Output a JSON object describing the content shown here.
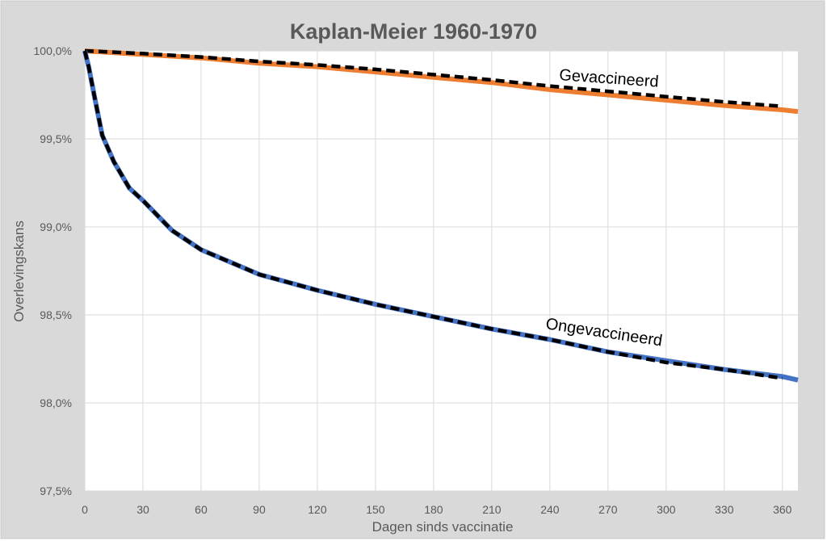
{
  "chart_data": {
    "type": "line",
    "title": "Kaplan-Meier 1960-1970",
    "xlabel": "Dagen sinds  vaccinatie",
    "ylabel": "Overlevingskans",
    "xlim": [
      0,
      368
    ],
    "ylim": [
      97.5,
      100.0
    ],
    "x_ticks": [
      0,
      30,
      60,
      90,
      120,
      150,
      180,
      210,
      240,
      270,
      300,
      330,
      360
    ],
    "y_ticks": [
      97.5,
      98.0,
      98.5,
      99.0,
      99.5,
      100.0
    ],
    "y_tick_labels": [
      "97,5%",
      "98,0%",
      "98,5%",
      "99,0%",
      "99,5%",
      "100,0%"
    ],
    "grid": true,
    "legend": "none",
    "colors": {
      "background": "#d9d9d9",
      "plot": "#ffffff",
      "grid": "#d9d9d9",
      "text": "#595959",
      "gevaccineerd": "#ed7d31",
      "ongevaccineerd": "#4472c4",
      "model": "#000000"
    },
    "series": [
      {
        "name": "Gevaccineerd",
        "color": "#ed7d31",
        "style": "solid",
        "x": [
          0,
          30,
          60,
          90,
          120,
          150,
          180,
          210,
          240,
          270,
          300,
          330,
          360,
          368
        ],
        "y": [
          100.0,
          99.98,
          99.96,
          99.93,
          99.91,
          99.88,
          99.85,
          99.82,
          99.78,
          99.75,
          99.72,
          99.69,
          99.665,
          99.655
        ]
      },
      {
        "color": "#000000",
        "style": "dashed",
        "x": [
          0,
          30,
          60,
          90,
          120,
          150,
          180,
          210,
          240,
          270,
          300,
          330,
          360
        ],
        "y": [
          100.0,
          99.985,
          99.965,
          99.94,
          99.92,
          99.895,
          99.865,
          99.835,
          99.8,
          99.77,
          99.74,
          99.71,
          99.685
        ]
      },
      {
        "name": "Ongevaccineerd",
        "color": "#4472c4",
        "style": "solid",
        "x": [
          0,
          2,
          5,
          9,
          15,
          23,
          30,
          45,
          60,
          90,
          120,
          150,
          180,
          210,
          240,
          270,
          300,
          330,
          360,
          368
        ],
        "y": [
          100.0,
          99.91,
          99.74,
          99.52,
          99.37,
          99.22,
          99.15,
          98.98,
          98.87,
          98.73,
          98.64,
          98.56,
          98.49,
          98.42,
          98.36,
          98.29,
          98.24,
          98.19,
          98.15,
          98.13
        ]
      },
      {
        "color": "#000000",
        "style": "dashed",
        "x": [
          0,
          2,
          5,
          9,
          15,
          23,
          30,
          45,
          60,
          90,
          120,
          150,
          180,
          210,
          240,
          270,
          300,
          330,
          360
        ],
        "y": [
          100.0,
          99.91,
          99.74,
          99.52,
          99.37,
          99.22,
          99.15,
          98.98,
          98.87,
          98.73,
          98.64,
          98.56,
          98.49,
          98.42,
          98.36,
          98.29,
          98.23,
          98.19,
          98.14
        ]
      }
    ],
    "annotations": [
      "Gevaccineerd",
      "Ongevaccineerd"
    ]
  }
}
